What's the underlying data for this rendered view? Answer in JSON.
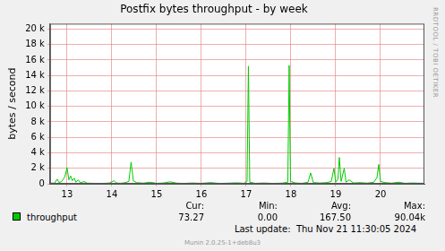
{
  "chart_data": {
    "type": "line",
    "title": "Postfix bytes throughput - by week",
    "y_label": "bytes / second",
    "series": [
      {
        "name": "throughput",
        "color": "#00cc00",
        "x": [
          12.65,
          12.72,
          12.78,
          12.82,
          12.88,
          12.95,
          13.0,
          13.04,
          13.08,
          13.12,
          13.16,
          13.2,
          13.25,
          13.3,
          13.38,
          13.45,
          13.6,
          13.8,
          13.95,
          14.05,
          14.1,
          14.2,
          14.3,
          14.38,
          14.43,
          14.48,
          14.55,
          14.7,
          14.85,
          15.0,
          15.15,
          15.3,
          15.45,
          15.6,
          15.8,
          16.0,
          16.2,
          16.4,
          16.6,
          16.8,
          16.95,
          17.02,
          17.05,
          17.08,
          17.2,
          17.4,
          17.6,
          17.8,
          17.93,
          17.96,
          17.99,
          18.1,
          18.25,
          18.38,
          18.44,
          18.5,
          18.65,
          18.8,
          18.9,
          18.96,
          19.0,
          19.05,
          19.08,
          19.12,
          19.19,
          19.23,
          19.3,
          19.4,
          19.55,
          19.7,
          19.85,
          19.92,
          19.96,
          20.0,
          20.1,
          20.25,
          20.4,
          20.55,
          20.7,
          20.85,
          20.95
        ],
        "values": [
          100,
          80,
          600,
          150,
          300,
          900,
          2100,
          500,
          1000,
          400,
          700,
          200,
          500,
          100,
          300,
          80,
          60,
          50,
          100,
          400,
          100,
          60,
          150,
          300,
          2800,
          400,
          150,
          80,
          200,
          60,
          100,
          250,
          80,
          50,
          100,
          60,
          150,
          50,
          80,
          120,
          60,
          300,
          15200,
          200,
          60,
          100,
          50,
          80,
          200,
          15300,
          300,
          100,
          60,
          200,
          1400,
          150,
          100,
          150,
          300,
          2000,
          200,
          600,
          3400,
          300,
          2000,
          200,
          500,
          100,
          150,
          80,
          200,
          800,
          2500,
          300,
          150,
          80,
          200,
          60,
          100,
          80,
          70
        ]
      }
    ],
    "xlim": [
      12.62,
      20.98
    ],
    "xticks": [
      13,
      14,
      15,
      16,
      17,
      18,
      19,
      20
    ],
    "ylim": [
      0,
      20700
    ],
    "yticks": [
      0,
      {
        "value": 2000,
        "label": "2 k"
      },
      {
        "value": 4000,
        "label": "4 k"
      },
      {
        "value": 6000,
        "label": "6 k"
      },
      {
        "value": 8000,
        "label": "8 k"
      },
      {
        "value": 10000,
        "label": "10 k"
      },
      {
        "value": 12000,
        "label": "12 k"
      },
      {
        "value": 14000,
        "label": "14 k"
      },
      {
        "value": 16000,
        "label": "16 k"
      },
      {
        "value": 18000,
        "label": "18 k"
      },
      {
        "value": 20000,
        "label": "20 k"
      }
    ],
    "grid": true,
    "legend": "bottom",
    "stats": [
      {
        "label": "Cur:",
        "value": "73.27"
      },
      {
        "label": "Min:",
        "value": "0.00"
      },
      {
        "label": "Avg:",
        "value": "167.50"
      },
      {
        "label": "Max:",
        "value": "90.04k"
      }
    ],
    "last_update": "Last update:  Thu Nov 21 11:30:05 2024",
    "side_text": "RRDTOOL / TOBI OETIKER",
    "footer": "Munin 2.0.25-1+deb8u3"
  }
}
